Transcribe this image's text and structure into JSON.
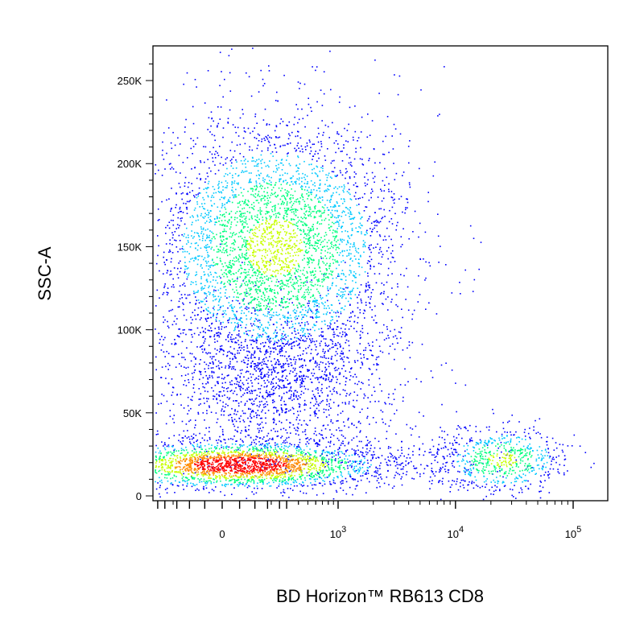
{
  "chart_data": {
    "type": "scatter",
    "title": "",
    "xlabel": "BD Horizon™ RB613 CD8",
    "ylabel": "SSC-A",
    "x_scale": "biexponential",
    "x_ticks": [
      {
        "value": 0,
        "label": "0"
      },
      {
        "value": 1000,
        "label": "10",
        "exp": "3"
      },
      {
        "value": 10000,
        "label": "10",
        "exp": "4"
      },
      {
        "value": 100000,
        "label": "10",
        "exp": "5"
      }
    ],
    "y_scale": "linear",
    "ylim": [
      0,
      262144
    ],
    "y_ticks": [
      {
        "value": 0,
        "label": "0"
      },
      {
        "value": 50000,
        "label": "50K"
      },
      {
        "value": 100000,
        "label": "100K"
      },
      {
        "value": 150000,
        "label": "150K"
      },
      {
        "value": 200000,
        "label": "200K"
      },
      {
        "value": 250000,
        "label": "250K"
      }
    ],
    "grid": false,
    "legend": "none",
    "color_scale": [
      "#0000ff",
      "#00c8ff",
      "#00ff7f",
      "#c8ff00",
      "#ff8c00",
      "#ff0000"
    ],
    "populations": [
      {
        "name": "",
        "x_center": 60,
        "y_center": 19000,
        "x_spread_log": 0.45,
        "y_spread": 7000,
        "n": 2600,
        "density": "high"
      },
      {
        "name": "",
        "x_center": 220,
        "y_center": 150000,
        "x_spread_log": 0.38,
        "y_spread": 38000,
        "n": 4200,
        "density": "medium"
      },
      {
        "name": "",
        "x_center": 220,
        "y_center": 70000,
        "x_spread_log": 0.35,
        "y_spread": 25000,
        "n": 1600,
        "density": "low"
      },
      {
        "name": "",
        "x_center": 25000,
        "y_center": 22000,
        "x_spread_log": 0.12,
        "y_spread": 10000,
        "n": 650,
        "density": "medium"
      },
      {
        "name": "",
        "x_center": 3000,
        "y_center": 22000,
        "x_spread_log": 0.45,
        "y_spread": 9000,
        "n": 260,
        "density": "low"
      }
    ]
  }
}
